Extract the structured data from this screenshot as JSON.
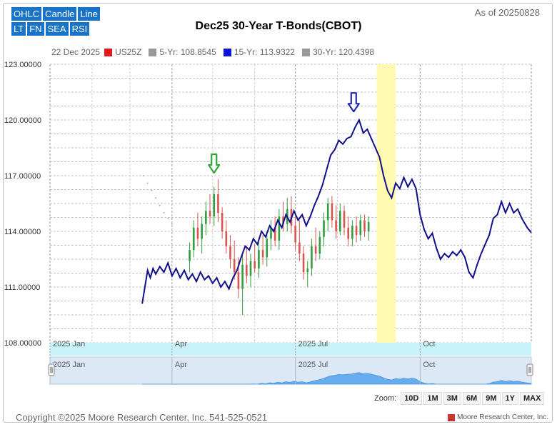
{
  "buttons_row1": [
    "OHLC",
    "Candle",
    "Line"
  ],
  "buttons_row2": [
    "LT",
    "FN",
    "SEA",
    "RSI"
  ],
  "as_of": "As of 20250828",
  "legend": {
    "date": "22 Dec 2025",
    "items": [
      {
        "label": "US25Z",
        "color": "#e31a1c"
      },
      {
        "label": "5-Yr: 108.8545",
        "color": "#999999"
      },
      {
        "label": "15-Yr: 113.9322",
        "color": "#1010e0"
      },
      {
        "label": "30-Yr: 120.4398",
        "color": "#999999"
      }
    ]
  },
  "zoom": {
    "label": "Zoom:",
    "options": [
      "10D",
      "1M",
      "3M",
      "6M",
      "9M",
      "1Y",
      "MAX"
    ]
  },
  "copyright": "Copyright ©2025 Moore Research Center, Inc. 541-525-0521",
  "brand": "Moore Research Center, Inc.",
  "colors": {
    "seasonal_line": "#0f0f8a",
    "up": "#2e9e3e",
    "down": "#d9534f",
    "highlight": "#fffab0",
    "navigator": "#5aa7ee",
    "arrow_green": "#2ea83a",
    "arrow_blue": "#2a2ab0"
  },
  "chart_data": {
    "type": "line",
    "title": "Dec25 30-Year T-Bonds(CBOT)",
    "ylim": [
      108,
      123
    ],
    "yticks": [
      108,
      111,
      114,
      117,
      120,
      123
    ],
    "ytick_labels": [
      "108.00000",
      "111.00000",
      "114.00000",
      "117.00000",
      "120.00000",
      "123.00000"
    ],
    "xlim": [
      "2025-01-01",
      "2025-12-22"
    ],
    "x_ticks": [
      {
        "date": "2025-01-01",
        "label": "2025 Jan"
      },
      {
        "date": "2025-04-01",
        "label": "Apr"
      },
      {
        "date": "2025-07-01",
        "label": "2025 Jul"
      },
      {
        "date": "2025-10-01",
        "label": "Oct"
      }
    ],
    "highlight_range": [
      "2025-08-30",
      "2025-09-13"
    ],
    "seasonal_series": {
      "name": "15-Yr",
      "points": [
        [
          "2025-03-10",
          110.1
        ],
        [
          "2025-03-12",
          111.0
        ],
        [
          "2025-03-14",
          111.9
        ],
        [
          "2025-03-16",
          111.5
        ],
        [
          "2025-03-18",
          112.0
        ],
        [
          "2025-03-20",
          111.7
        ],
        [
          "2025-03-23",
          112.1
        ],
        [
          "2025-03-26",
          111.8
        ],
        [
          "2025-03-29",
          112.3
        ],
        [
          "2025-04-01",
          111.6
        ],
        [
          "2025-04-04",
          112.0
        ],
        [
          "2025-04-07",
          111.5
        ],
        [
          "2025-04-10",
          111.9
        ],
        [
          "2025-04-13",
          111.4
        ],
        [
          "2025-04-16",
          111.7
        ],
        [
          "2025-04-19",
          111.3
        ],
        [
          "2025-04-22",
          111.8
        ],
        [
          "2025-04-25",
          111.4
        ],
        [
          "2025-04-28",
          111.6
        ],
        [
          "2025-05-01",
          111.2
        ],
        [
          "2025-05-04",
          111.5
        ],
        [
          "2025-05-07",
          111.0
        ],
        [
          "2025-05-10",
          111.3
        ],
        [
          "2025-05-13",
          110.9
        ],
        [
          "2025-05-16",
          111.5
        ],
        [
          "2025-05-19",
          111.9
        ],
        [
          "2025-05-22",
          112.6
        ],
        [
          "2025-05-25",
          113.2
        ],
        [
          "2025-05-28",
          113.0
        ],
        [
          "2025-05-31",
          113.6
        ],
        [
          "2025-06-03",
          113.3
        ],
        [
          "2025-06-06",
          114.0
        ],
        [
          "2025-06-09",
          113.7
        ],
        [
          "2025-06-12",
          114.3
        ],
        [
          "2025-06-15",
          114.0
        ],
        [
          "2025-06-18",
          114.6
        ],
        [
          "2025-06-21",
          114.2
        ],
        [
          "2025-06-24",
          114.9
        ],
        [
          "2025-06-27",
          114.5
        ],
        [
          "2025-06-30",
          115.1
        ],
        [
          "2025-07-03",
          114.6
        ],
        [
          "2025-07-06",
          114.9
        ],
        [
          "2025-07-09",
          114.3
        ],
        [
          "2025-07-12",
          114.8
        ],
        [
          "2025-07-15",
          115.4
        ],
        [
          "2025-07-18",
          115.9
        ],
        [
          "2025-07-21",
          116.5
        ],
        [
          "2025-07-24",
          117.3
        ],
        [
          "2025-07-27",
          118.1
        ],
        [
          "2025-07-30",
          118.4
        ],
        [
          "2025-08-02",
          118.9
        ],
        [
          "2025-08-05",
          118.7
        ],
        [
          "2025-08-08",
          119.0
        ],
        [
          "2025-08-11",
          119.1
        ],
        [
          "2025-08-14",
          119.6
        ],
        [
          "2025-08-17",
          120.0
        ],
        [
          "2025-08-20",
          119.3
        ],
        [
          "2025-08-23",
          119.5
        ],
        [
          "2025-08-26",
          119.0
        ],
        [
          "2025-08-29",
          118.5
        ],
        [
          "2025-09-01",
          118.0
        ],
        [
          "2025-09-04",
          117.0
        ],
        [
          "2025-09-07",
          116.2
        ],
        [
          "2025-09-10",
          115.8
        ],
        [
          "2025-09-13",
          116.6
        ],
        [
          "2025-09-16",
          116.3
        ],
        [
          "2025-09-19",
          116.9
        ],
        [
          "2025-09-22",
          116.4
        ],
        [
          "2025-09-25",
          116.8
        ],
        [
          "2025-09-28",
          116.3
        ],
        [
          "2025-10-01",
          114.9
        ],
        [
          "2025-10-04",
          114.1
        ],
        [
          "2025-10-07",
          113.6
        ],
        [
          "2025-10-10",
          113.9
        ],
        [
          "2025-10-13",
          113.1
        ],
        [
          "2025-10-16",
          112.5
        ],
        [
          "2025-10-19",
          112.8
        ],
        [
          "2025-10-22",
          112.6
        ],
        [
          "2025-10-25",
          112.9
        ],
        [
          "2025-10-28",
          112.7
        ],
        [
          "2025-10-31",
          113.0
        ],
        [
          "2025-11-03",
          112.6
        ],
        [
          "2025-11-06",
          111.8
        ],
        [
          "2025-11-09",
          111.5
        ],
        [
          "2025-11-12",
          112.2
        ],
        [
          "2025-11-15",
          112.8
        ],
        [
          "2025-11-18",
          113.3
        ],
        [
          "2025-11-21",
          113.8
        ],
        [
          "2025-11-24",
          114.7
        ],
        [
          "2025-11-27",
          114.9
        ],
        [
          "2025-11-30",
          115.6
        ],
        [
          "2025-12-03",
          115.0
        ],
        [
          "2025-12-06",
          115.5
        ],
        [
          "2025-12-09",
          115.0
        ],
        [
          "2025-12-12",
          115.2
        ],
        [
          "2025-12-15",
          114.7
        ],
        [
          "2025-12-19",
          114.2
        ],
        [
          "2025-12-22",
          113.93
        ]
      ]
    },
    "faint_points": [
      [
        "2025-03-11",
        117.0
      ],
      [
        "2025-03-14",
        116.6
      ],
      [
        "2025-03-17",
        116.2
      ],
      [
        "2025-03-20",
        115.8
      ],
      [
        "2025-03-23",
        115.4
      ],
      [
        "2025-03-26",
        115.0
      ],
      [
        "2025-03-29",
        114.7
      ],
      [
        "2025-04-01",
        114.4
      ]
    ],
    "candles": [
      {
        "date": "2025-04-14",
        "o": 112.4,
        "h": 113.4,
        "l": 111.8,
        "c": 113.0
      },
      {
        "date": "2025-04-17",
        "o": 113.0,
        "h": 114.6,
        "l": 112.6,
        "c": 114.2
      },
      {
        "date": "2025-04-20",
        "o": 114.2,
        "h": 115.0,
        "l": 113.2,
        "c": 113.6
      },
      {
        "date": "2025-04-23",
        "o": 113.6,
        "h": 114.8,
        "l": 112.8,
        "c": 114.4
      },
      {
        "date": "2025-04-26",
        "o": 114.4,
        "h": 115.6,
        "l": 113.8,
        "c": 115.1
      },
      {
        "date": "2025-04-29",
        "o": 115.1,
        "h": 116.0,
        "l": 114.4,
        "c": 114.8
      },
      {
        "date": "2025-05-02",
        "o": 114.8,
        "h": 116.4,
        "l": 114.3,
        "c": 116.0
      },
      {
        "date": "2025-05-05",
        "o": 116.0,
        "h": 116.8,
        "l": 114.5,
        "c": 115.0
      },
      {
        "date": "2025-05-08",
        "o": 115.0,
        "h": 115.3,
        "l": 113.6,
        "c": 114.0
      },
      {
        "date": "2025-05-11",
        "o": 114.0,
        "h": 114.6,
        "l": 112.8,
        "c": 113.2
      },
      {
        "date": "2025-05-14",
        "o": 113.2,
        "h": 113.8,
        "l": 112.0,
        "c": 112.5
      },
      {
        "date": "2025-05-17",
        "o": 112.5,
        "h": 113.5,
        "l": 111.4,
        "c": 111.8
      },
      {
        "date": "2025-05-20",
        "o": 111.8,
        "h": 112.6,
        "l": 110.4,
        "c": 110.9
      },
      {
        "date": "2025-05-23",
        "o": 110.9,
        "h": 112.8,
        "l": 109.5,
        "c": 112.2
      },
      {
        "date": "2025-05-26",
        "o": 112.2,
        "h": 113.2,
        "l": 111.2,
        "c": 111.6
      },
      {
        "date": "2025-05-29",
        "o": 111.6,
        "h": 112.8,
        "l": 111.0,
        "c": 112.4
      },
      {
        "date": "2025-06-01",
        "o": 112.4,
        "h": 113.3,
        "l": 111.8,
        "c": 112.0
      },
      {
        "date": "2025-06-04",
        "o": 112.0,
        "h": 113.4,
        "l": 111.5,
        "c": 113.0
      },
      {
        "date": "2025-06-07",
        "o": 113.0,
        "h": 113.8,
        "l": 112.2,
        "c": 112.6
      },
      {
        "date": "2025-06-10",
        "o": 112.6,
        "h": 114.0,
        "l": 112.1,
        "c": 113.6
      },
      {
        "date": "2025-06-13",
        "o": 113.6,
        "h": 114.6,
        "l": 113.0,
        "c": 114.2
      },
      {
        "date": "2025-06-16",
        "o": 114.2,
        "h": 114.8,
        "l": 113.2,
        "c": 113.5
      },
      {
        "date": "2025-06-19",
        "o": 113.5,
        "h": 115.2,
        "l": 113.0,
        "c": 114.8
      },
      {
        "date": "2025-06-22",
        "o": 114.8,
        "h": 115.6,
        "l": 114.0,
        "c": 114.4
      },
      {
        "date": "2025-06-25",
        "o": 114.4,
        "h": 115.8,
        "l": 114.0,
        "c": 115.2
      },
      {
        "date": "2025-06-28",
        "o": 115.2,
        "h": 115.9,
        "l": 113.9,
        "c": 114.3
      },
      {
        "date": "2025-07-01",
        "o": 114.3,
        "h": 114.8,
        "l": 113.0,
        "c": 113.4
      },
      {
        "date": "2025-07-04",
        "o": 113.4,
        "h": 114.6,
        "l": 112.4,
        "c": 112.8
      },
      {
        "date": "2025-07-07",
        "o": 112.8,
        "h": 113.2,
        "l": 111.4,
        "c": 111.8
      },
      {
        "date": "2025-07-10",
        "o": 111.8,
        "h": 112.4,
        "l": 111.0,
        "c": 112.0
      },
      {
        "date": "2025-07-13",
        "o": 112.0,
        "h": 113.6,
        "l": 111.6,
        "c": 113.2
      },
      {
        "date": "2025-07-16",
        "o": 113.2,
        "h": 114.2,
        "l": 112.4,
        "c": 112.8
      },
      {
        "date": "2025-07-19",
        "o": 112.8,
        "h": 114.0,
        "l": 112.5,
        "c": 113.7
      },
      {
        "date": "2025-07-22",
        "o": 113.7,
        "h": 115.0,
        "l": 113.2,
        "c": 114.6
      },
      {
        "date": "2025-07-25",
        "o": 114.6,
        "h": 115.8,
        "l": 114.0,
        "c": 115.5
      },
      {
        "date": "2025-07-28",
        "o": 115.5,
        "h": 115.9,
        "l": 114.2,
        "c": 114.6
      },
      {
        "date": "2025-07-31",
        "o": 114.6,
        "h": 115.4,
        "l": 113.6,
        "c": 114.0
      },
      {
        "date": "2025-08-03",
        "o": 114.0,
        "h": 115.5,
        "l": 113.8,
        "c": 115.1
      },
      {
        "date": "2025-08-06",
        "o": 115.1,
        "h": 115.4,
        "l": 113.8,
        "c": 114.2
      },
      {
        "date": "2025-08-09",
        "o": 114.2,
        "h": 114.8,
        "l": 113.2,
        "c": 113.6
      },
      {
        "date": "2025-08-12",
        "o": 113.6,
        "h": 114.6,
        "l": 113.2,
        "c": 114.3
      },
      {
        "date": "2025-08-15",
        "o": 114.3,
        "h": 114.8,
        "l": 113.4,
        "c": 113.8
      },
      {
        "date": "2025-08-18",
        "o": 113.8,
        "h": 114.9,
        "l": 113.5,
        "c": 114.6
      },
      {
        "date": "2025-08-21",
        "o": 114.6,
        "h": 114.9,
        "l": 113.7,
        "c": 114.0
      },
      {
        "date": "2025-08-24",
        "o": 114.0,
        "h": 114.8,
        "l": 113.5,
        "c": 114.5
      }
    ],
    "arrows": [
      {
        "date": "2025-05-02",
        "value": 117.0,
        "color": "arrow_green"
      },
      {
        "date": "2025-08-13",
        "value": 120.3,
        "color": "arrow_blue"
      }
    ],
    "navigator_x_ticks": [
      {
        "date": "2025-01-01",
        "label": "2025 Jan"
      },
      {
        "date": "2025-04-01",
        "label": "Apr"
      },
      {
        "date": "2025-07-01",
        "label": "2025 Jul"
      },
      {
        "date": "2025-10-01",
        "label": "Oct"
      }
    ]
  }
}
